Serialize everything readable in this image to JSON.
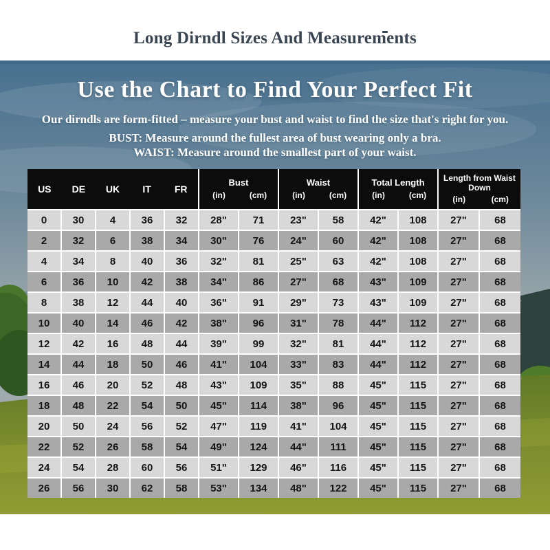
{
  "page": {
    "title": "Long Dirndl Sizes And Measurements"
  },
  "hero": {
    "heading": "Use the Chart to Find Your Perfect Fit",
    "intro": "Our dirndls are form-fitted – measure your bust and waist to find the size that's right for you.",
    "bust_note": "BUST: Measure around the fullest area of bust wearing only a bra.",
    "waist_note": "WAIST: Measure around the smallest part of your waist."
  },
  "size_chart": {
    "size_columns": [
      "US",
      "DE",
      "UK",
      "IT",
      "FR"
    ],
    "measure_groups": [
      {
        "label": "Bust",
        "units": [
          "(in)",
          "(cm)"
        ]
      },
      {
        "label": "Waist",
        "units": [
          "(in)",
          "(cm)"
        ]
      },
      {
        "label": "Total Length",
        "units": [
          "(in)",
          "(cm)"
        ]
      },
      {
        "label": "Length from Waist Down",
        "units": [
          "(in)",
          "(cm)"
        ]
      }
    ],
    "rows": [
      [
        "0",
        "30",
        "4",
        "36",
        "32",
        "28\"",
        "71",
        "23\"",
        "58",
        "42\"",
        "108",
        "27\"",
        "68"
      ],
      [
        "2",
        "32",
        "6",
        "38",
        "34",
        "30\"",
        "76",
        "24\"",
        "60",
        "42\"",
        "108",
        "27\"",
        "68"
      ],
      [
        "4",
        "34",
        "8",
        "40",
        "36",
        "32\"",
        "81",
        "25\"",
        "63",
        "42\"",
        "108",
        "27\"",
        "68"
      ],
      [
        "6",
        "36",
        "10",
        "42",
        "38",
        "34\"",
        "86",
        "27\"",
        "68",
        "43\"",
        "109",
        "27\"",
        "68"
      ],
      [
        "8",
        "38",
        "12",
        "44",
        "40",
        "36\"",
        "91",
        "29\"",
        "73",
        "43\"",
        "109",
        "27\"",
        "68"
      ],
      [
        "10",
        "40",
        "14",
        "46",
        "42",
        "38\"",
        "96",
        "31\"",
        "78",
        "44\"",
        "112",
        "27\"",
        "68"
      ],
      [
        "12",
        "42",
        "16",
        "48",
        "44",
        "39\"",
        "99",
        "32\"",
        "81",
        "44\"",
        "112",
        "27\"",
        "68"
      ],
      [
        "14",
        "44",
        "18",
        "50",
        "46",
        "41\"",
        "104",
        "33\"",
        "83",
        "44\"",
        "112",
        "27\"",
        "68"
      ],
      [
        "16",
        "46",
        "20",
        "52",
        "48",
        "43\"",
        "109",
        "35\"",
        "88",
        "45\"",
        "115",
        "27\"",
        "68"
      ],
      [
        "18",
        "48",
        "22",
        "54",
        "50",
        "45\"",
        "114",
        "38\"",
        "96",
        "45\"",
        "115",
        "27\"",
        "68"
      ],
      [
        "20",
        "50",
        "24",
        "56",
        "52",
        "47\"",
        "119",
        "41\"",
        "104",
        "45\"",
        "115",
        "27\"",
        "68"
      ],
      [
        "22",
        "52",
        "26",
        "58",
        "54",
        "49\"",
        "124",
        "44\"",
        "111",
        "45\"",
        "115",
        "27\"",
        "68"
      ],
      [
        "24",
        "54",
        "28",
        "60",
        "56",
        "51\"",
        "129",
        "46\"",
        "116",
        "45\"",
        "115",
        "27\"",
        "68"
      ],
      [
        "26",
        "56",
        "30",
        "62",
        "58",
        "53\"",
        "134",
        "48\"",
        "122",
        "45\"",
        "115",
        "27\"",
        "68"
      ]
    ]
  },
  "colors": {
    "title_text": "#3a4553",
    "hero_text": "#ffffff",
    "header_bg": "#0c0c0c",
    "row_light": "#d8d8d8",
    "row_dark": "#a9a9a9",
    "sky_top": "#47708f",
    "sky_horizon": "#9aa7ab",
    "mountain": "#2d423d",
    "grass": "#7d8c2e"
  }
}
